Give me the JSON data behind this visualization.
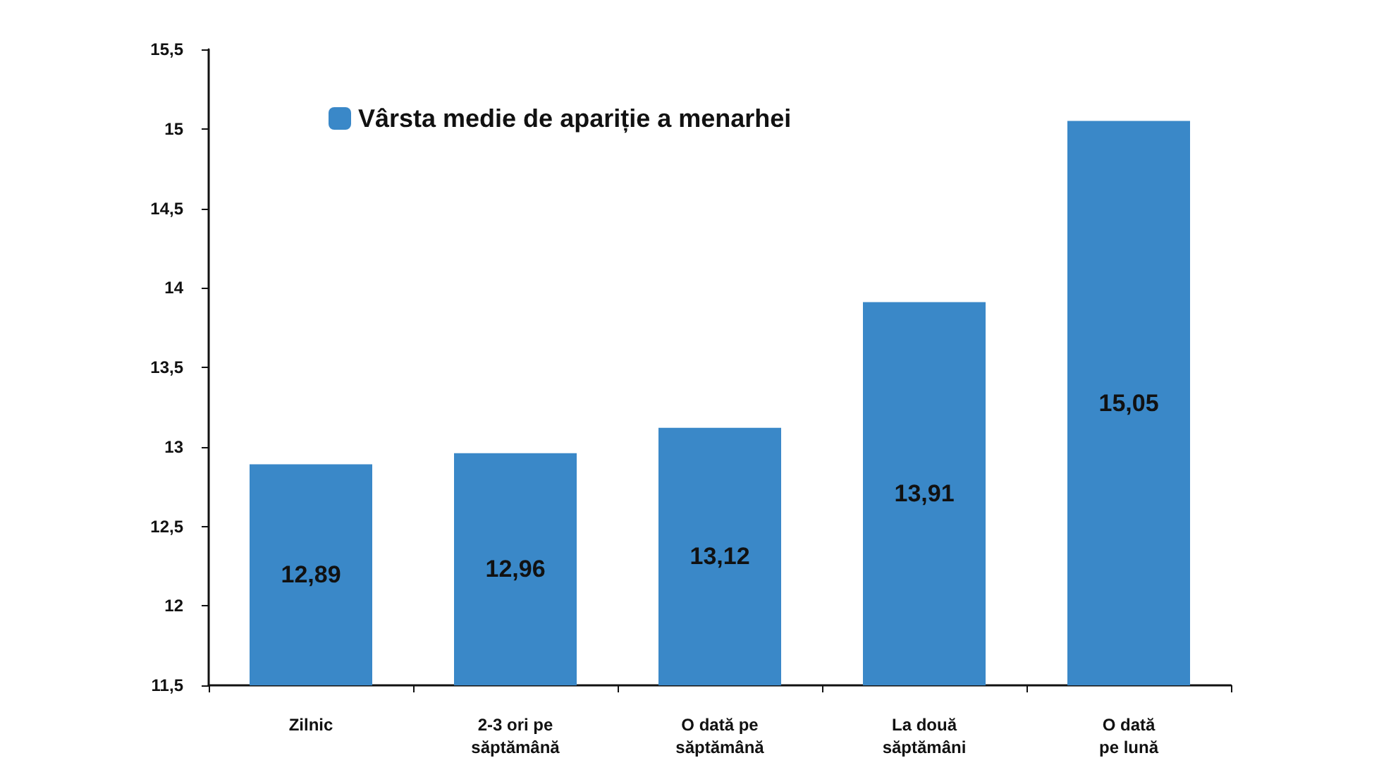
{
  "chart_data": {
    "type": "bar",
    "categories": [
      "Zilnic",
      "2-3 ori pe\nsăptămână",
      "O dată pe\nsăptămână",
      "La două\nsăptămâni",
      "O dată\npe lună"
    ],
    "series": [
      {
        "name": "Vârsta medie de apariție a menarhei",
        "color": "#3a88c8",
        "values": [
          12.89,
          12.96,
          13.12,
          13.91,
          15.05
        ],
        "value_labels": [
          "12,89",
          "12,96",
          "13,12",
          "13,91",
          "15,05"
        ]
      }
    ],
    "ylim": [
      11.5,
      15.5
    ],
    "yticks": [
      {
        "value": 11.5,
        "label": "11,5"
      },
      {
        "value": 12,
        "label": "12"
      },
      {
        "value": 12.5,
        "label": "12,5"
      },
      {
        "value": 13,
        "label": "13"
      },
      {
        "value": 13.5,
        "label": "13,5"
      },
      {
        "value": 14,
        "label": "14"
      },
      {
        "value": 14.5,
        "label": "14,5"
      },
      {
        "value": 15,
        "label": "15"
      },
      {
        "value": 15.5,
        "label": "15,5"
      }
    ],
    "grid": false,
    "legend": "top left"
  }
}
